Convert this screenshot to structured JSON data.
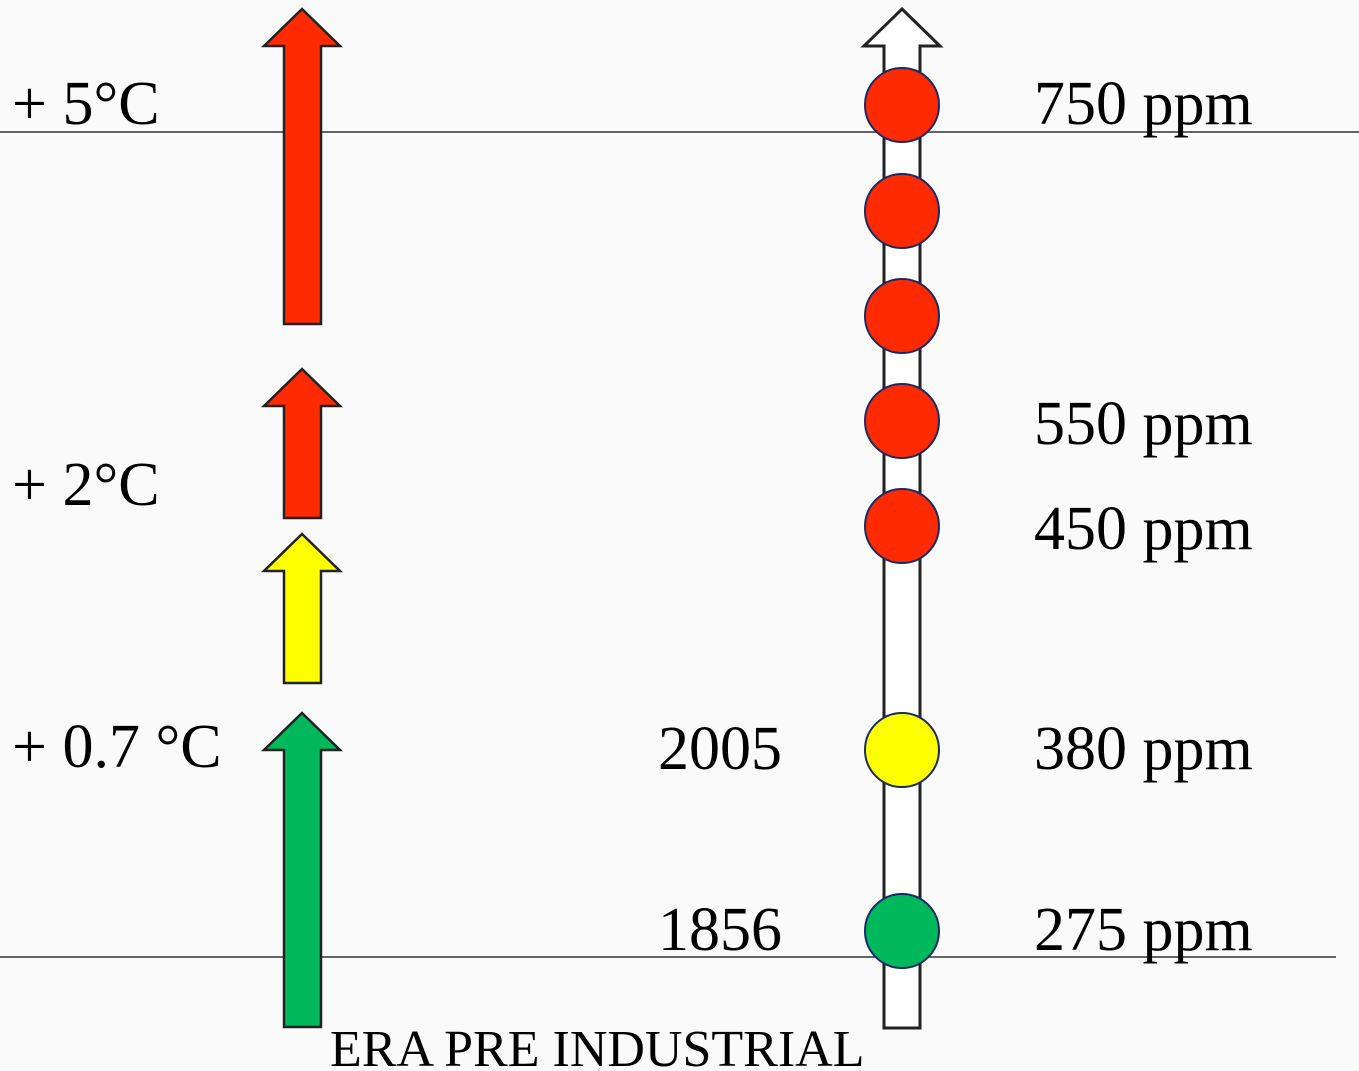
{
  "temperature_labels": {
    "t5": "+ 5°C",
    "t2": "+ 2°C",
    "t07": "+ 0.7 °C"
  },
  "concentration_labels": {
    "c750": "750 ppm",
    "c550": "550 ppm",
    "c450": "450 ppm",
    "c380": "380 ppm",
    "c275": "275 ppm"
  },
  "year_labels": {
    "y2005": "2005",
    "y1856": "1856"
  },
  "baseline_label": "ERA PRE  INDUSTRIAL",
  "colors": {
    "red": "#ff2a00",
    "yellow": "#ffff00",
    "green": "#00b85c",
    "outline": "#1a2a66",
    "line": "#333333",
    "background": "#fafafa"
  },
  "markers": [
    {
      "color": "red"
    },
    {
      "color": "red"
    },
    {
      "color": "red"
    },
    {
      "color": "red"
    },
    {
      "color": "red"
    },
    {
      "color": "yellow"
    },
    {
      "color": "green"
    }
  ]
}
